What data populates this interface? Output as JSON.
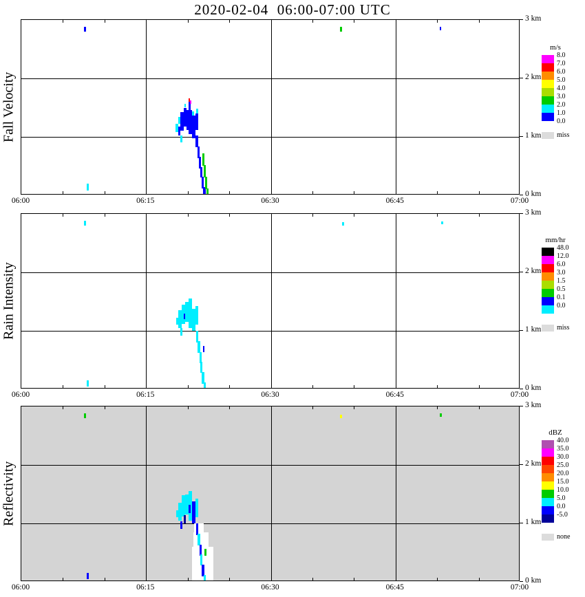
{
  "title": "2020-02-04  06:00-07:00 UTC",
  "chart_data": {
    "type": "heatmap",
    "description": "Vertically pointing radar time-height quicklook with three stacked panels (fall velocity, rain intensity, reflectivity); precipitation fall-streak around 06:19-06:23 below 1.7 km",
    "x_axis": {
      "range_minutes_after_0600": [
        0,
        60
      ],
      "ticks": [
        {
          "t": 0,
          "label": "06:00"
        },
        {
          "t": 15,
          "label": "06:15"
        },
        {
          "t": 30,
          "label": "06:30"
        },
        {
          "t": 45,
          "label": "06:45"
        },
        {
          "t": 60,
          "label": "07:00"
        }
      ],
      "grid_minutes": [
        15,
        30,
        45
      ],
      "minor_tick_minutes": [
        5,
        10,
        20,
        25,
        35,
        40,
        50,
        55
      ]
    },
    "y_axis": {
      "range_km": [
        0,
        3
      ],
      "ticks": [
        {
          "h": 3,
          "label": "3 km"
        },
        {
          "h": 2,
          "label": "2 km"
        },
        {
          "h": 1,
          "label": "1 km"
        },
        {
          "h": 0,
          "label": "0 km"
        }
      ],
      "grid_km": [
        1,
        2
      ]
    },
    "palette": {
      "magenta": "#ff00ff",
      "red": "#ff0000",
      "redorange": "#ff4500",
      "orange": "#ff8c00",
      "yellow": "#ffff00",
      "ygreen": "#aadd00",
      "green": "#00cc00",
      "cyan": "#00eeff",
      "blue": "#0000ff",
      "darkblue": "#000099",
      "purple": "#b050b0",
      "black": "#000000",
      "white": "#ffffff",
      "miss": "#dcdcdc",
      "panelgray": "#d4d4d4"
    },
    "panels": [
      {
        "id": "fall-velocity",
        "ylabel": "Fall Velocity",
        "bg": "white",
        "colorbar": {
          "unit": "m/s",
          "cells": [
            {
              "color": "magenta",
              "label": "8.0"
            },
            {
              "color": "red",
              "label": "7.0"
            },
            {
              "color": "orange",
              "label": "6.0"
            },
            {
              "color": "yellow",
              "label": "5.0"
            },
            {
              "color": "ygreen",
              "label": "4.0"
            },
            {
              "color": "green",
              "label": "3.0"
            },
            {
              "color": "cyan",
              "label": "2.0"
            },
            {
              "color": "blue",
              "label": "1.0"
            }
          ],
          "bottom_label": "0.0",
          "missing": {
            "color": "miss",
            "label": "miss"
          }
        },
        "background_patches": [],
        "cells": [
          [
            18.55,
            18.85,
            1.08,
            1.22,
            "cyan"
          ],
          [
            18.85,
            19.15,
            1.02,
            1.18,
            "blue"
          ],
          [
            18.9,
            19.2,
            1.22,
            1.34,
            "cyan"
          ],
          [
            19.15,
            19.55,
            1.1,
            1.42,
            "blue"
          ],
          [
            19.1,
            19.35,
            0.9,
            1.02,
            "cyan"
          ],
          [
            19.55,
            19.85,
            1.18,
            1.5,
            "blue"
          ],
          [
            19.6,
            19.8,
            1.5,
            1.56,
            "cyan"
          ],
          [
            19.85,
            20.15,
            1.12,
            1.46,
            "blue"
          ],
          [
            20.1,
            20.35,
            1.46,
            1.6,
            "blue"
          ],
          [
            20.15,
            20.3,
            1.6,
            1.66,
            "red"
          ],
          [
            20.3,
            20.45,
            1.56,
            1.62,
            "magenta"
          ],
          [
            20.15,
            20.5,
            1.05,
            1.46,
            "blue"
          ],
          [
            20.5,
            20.9,
            0.98,
            1.36,
            "blue"
          ],
          [
            20.55,
            20.75,
            1.36,
            1.44,
            "cyan"
          ],
          [
            20.9,
            21.25,
            1.12,
            1.4,
            "blue"
          ],
          [
            21.05,
            21.3,
            1.4,
            1.48,
            "cyan"
          ],
          [
            20.95,
            21.3,
            0.82,
            1.02,
            "blue"
          ],
          [
            21.15,
            21.45,
            0.64,
            0.84,
            "blue"
          ],
          [
            21.35,
            21.6,
            0.46,
            0.66,
            "blue"
          ],
          [
            21.5,
            21.75,
            0.3,
            0.48,
            "blue"
          ],
          [
            21.65,
            21.95,
            0.12,
            0.32,
            "blue"
          ],
          [
            21.85,
            22.15,
            0.02,
            0.14,
            "blue"
          ],
          [
            21.75,
            22.0,
            0.5,
            0.72,
            "green"
          ],
          [
            21.95,
            22.2,
            0.3,
            0.52,
            "green"
          ],
          [
            22.1,
            22.35,
            0.1,
            0.32,
            "green"
          ],
          [
            22.25,
            22.5,
            0.02,
            0.12,
            "green"
          ],
          [
            7.55,
            7.8,
            2.8,
            2.88,
            "blue"
          ],
          [
            38.3,
            38.55,
            2.8,
            2.88,
            "green"
          ],
          [
            50.3,
            50.5,
            2.82,
            2.88,
            "blue"
          ],
          [
            7.9,
            8.15,
            0.08,
            0.2,
            "cyan"
          ]
        ]
      },
      {
        "id": "rain-intensity",
        "ylabel": "Rain Intensity",
        "bg": "white",
        "colorbar": {
          "unit": "mm/hr",
          "cells": [
            {
              "color": "black",
              "label": "48.0"
            },
            {
              "color": "magenta",
              "label": "12.0"
            },
            {
              "color": "red",
              "label": "6.0"
            },
            {
              "color": "orange",
              "label": "3.0"
            },
            {
              "color": "ygreen",
              "label": "1.5"
            },
            {
              "color": "green",
              "label": "0.5"
            },
            {
              "color": "blue",
              "label": "0.1"
            },
            {
              "color": "cyan",
              "label": "0.0"
            }
          ],
          "bottom_label": "",
          "missing": {
            "color": "miss",
            "label": "miss"
          }
        },
        "background_patches": [],
        "cells": [
          [
            18.6,
            18.9,
            1.1,
            1.22,
            "cyan"
          ],
          [
            18.9,
            19.3,
            1.05,
            1.35,
            "cyan"
          ],
          [
            19.3,
            19.7,
            1.12,
            1.45,
            "cyan"
          ],
          [
            19.55,
            19.75,
            1.2,
            1.3,
            "blue"
          ],
          [
            19.7,
            20.1,
            1.15,
            1.5,
            "cyan"
          ],
          [
            20.1,
            20.5,
            1.05,
            1.55,
            "cyan"
          ],
          [
            20.5,
            20.9,
            1.0,
            1.38,
            "cyan"
          ],
          [
            20.9,
            21.25,
            1.1,
            1.42,
            "cyan"
          ],
          [
            19.1,
            19.35,
            0.92,
            1.05,
            "cyan"
          ],
          [
            21.0,
            21.3,
            0.8,
            1.0,
            "cyan"
          ],
          [
            21.2,
            21.5,
            0.62,
            0.82,
            "cyan"
          ],
          [
            21.4,
            21.65,
            0.45,
            0.64,
            "cyan"
          ],
          [
            21.55,
            21.8,
            0.28,
            0.47,
            "cyan"
          ],
          [
            21.7,
            22.0,
            0.1,
            0.3,
            "cyan"
          ],
          [
            21.9,
            22.2,
            0.02,
            0.12,
            "cyan"
          ],
          [
            21.85,
            22.05,
            0.64,
            0.74,
            "blue"
          ],
          [
            7.55,
            7.8,
            2.8,
            2.88,
            "cyan"
          ],
          [
            38.55,
            38.8,
            2.8,
            2.86,
            "cyan"
          ],
          [
            50.5,
            50.7,
            2.82,
            2.87,
            "cyan"
          ],
          [
            7.9,
            8.15,
            0.05,
            0.15,
            "cyan"
          ]
        ]
      },
      {
        "id": "reflectivity",
        "ylabel": "Reflectivity",
        "bg": "panelgray",
        "colorbar": {
          "unit": "dBZ",
          "cells": [
            {
              "color": "purple",
              "label": "40.0"
            },
            {
              "color": "magenta",
              "label": "35.0"
            },
            {
              "color": "red",
              "label": "30.0"
            },
            {
              "color": "redorange",
              "label": "25.0"
            },
            {
              "color": "orange",
              "label": "20.0"
            },
            {
              "color": "yellow",
              "label": "15.0"
            },
            {
              "color": "green",
              "label": "10.0"
            },
            {
              "color": "cyan",
              "label": "5.0"
            },
            {
              "color": "blue",
              "label": "0.0"
            },
            {
              "color": "darkblue",
              "label": "-5.0"
            }
          ],
          "bottom_label": "",
          "missing": {
            "color": "miss",
            "label": "none"
          }
        },
        "background_patches": [
          [
            20.55,
            23.1,
            0.0,
            0.6,
            "white"
          ],
          [
            20.7,
            22.5,
            0.55,
            0.85,
            "white"
          ],
          [
            20.8,
            21.9,
            0.8,
            1.0,
            "white"
          ]
        ],
        "cells": [
          [
            18.6,
            18.9,
            1.1,
            1.22,
            "cyan"
          ],
          [
            18.9,
            19.3,
            1.05,
            1.35,
            "cyan"
          ],
          [
            19.3,
            19.7,
            1.12,
            1.48,
            "cyan"
          ],
          [
            19.55,
            19.8,
            1.0,
            1.14,
            "darkblue"
          ],
          [
            19.7,
            20.1,
            1.15,
            1.5,
            "cyan"
          ],
          [
            20.1,
            20.5,
            1.05,
            1.55,
            "cyan"
          ],
          [
            20.15,
            20.4,
            1.18,
            1.32,
            "blue"
          ],
          [
            20.5,
            20.9,
            1.0,
            1.38,
            "blue"
          ],
          [
            20.9,
            21.25,
            1.1,
            1.42,
            "cyan"
          ],
          [
            19.1,
            19.35,
            0.9,
            1.04,
            "blue"
          ],
          [
            21.0,
            21.3,
            0.8,
            1.0,
            "blue"
          ],
          [
            21.2,
            21.5,
            0.62,
            0.82,
            "cyan"
          ],
          [
            21.4,
            21.65,
            0.45,
            0.64,
            "blue"
          ],
          [
            21.55,
            21.8,
            0.28,
            0.47,
            "cyan"
          ],
          [
            21.7,
            22.0,
            0.1,
            0.3,
            "blue"
          ],
          [
            21.9,
            22.2,
            0.02,
            0.12,
            "cyan"
          ],
          [
            22.05,
            22.3,
            0.45,
            0.56,
            "green"
          ],
          [
            7.55,
            7.8,
            2.8,
            2.88,
            "green"
          ],
          [
            38.3,
            38.55,
            2.8,
            2.86,
            "yellow"
          ],
          [
            50.3,
            50.55,
            2.82,
            2.88,
            "green"
          ],
          [
            7.9,
            8.15,
            0.05,
            0.15,
            "blue"
          ]
        ]
      }
    ]
  }
}
